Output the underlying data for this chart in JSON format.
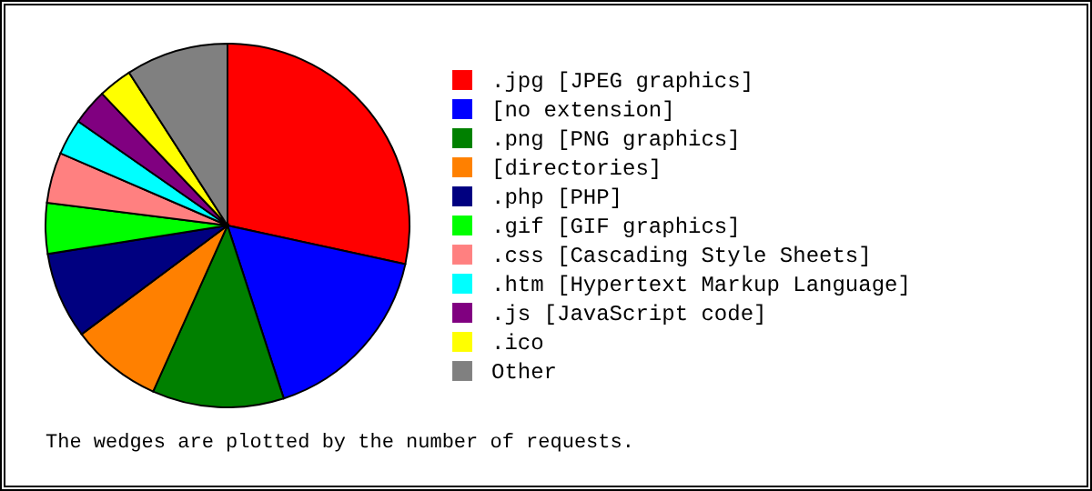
{
  "chart_data": {
    "type": "pie",
    "categories": [
      ".jpg  [JPEG graphics]",
      "[no extension]",
      ".png  [PNG graphics]",
      "[directories]",
      ".php  [PHP]",
      ".gif  [GIF graphics]",
      ".css  [Cascading Style Sheets]",
      ".htm  [Hypertext Markup Language]",
      ".js   [JavaScript code]",
      ".ico",
      "Other"
    ],
    "values": [
      28.4,
      16.6,
      11.7,
      8.1,
      7.7,
      4.5,
      4.5,
      3.2,
      3.2,
      3.0,
      9.1
    ],
    "colors": [
      "#ff0000",
      "#0000ff",
      "#008000",
      "#ff8000",
      "#000080",
      "#00ff00",
      "#ff8080",
      "#00ffff",
      "#800080",
      "#ffff00",
      "#808080"
    ],
    "legend": "right",
    "annotations": [
      "The wedges are plotted by the number of requests."
    ]
  }
}
